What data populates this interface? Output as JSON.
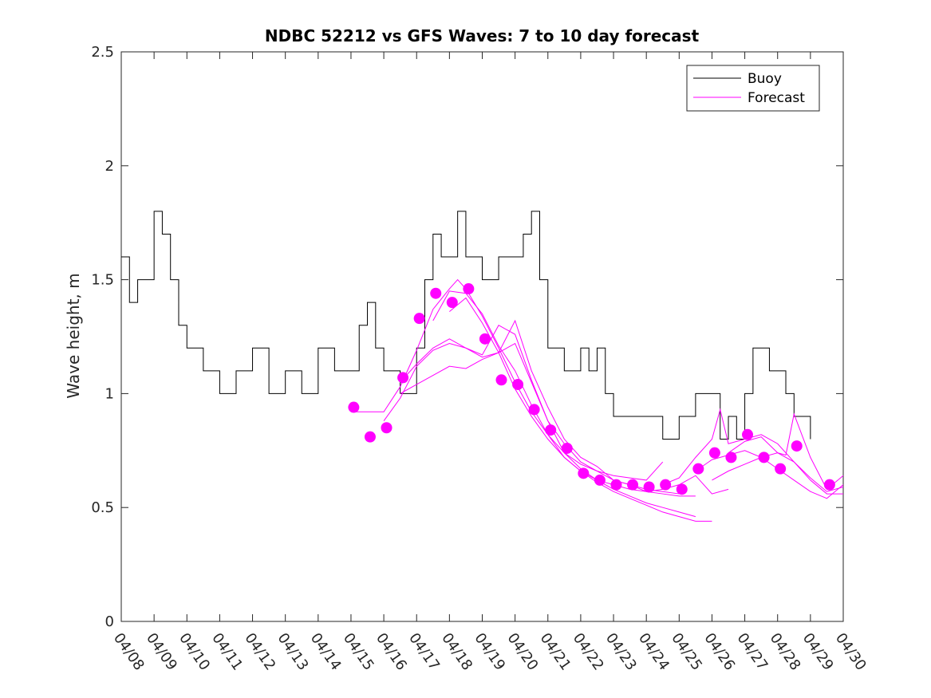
{
  "chart_data": {
    "type": "line",
    "title": "NDBC 52212 vs GFS Waves: 7 to 10 day forecast",
    "xlabel": "",
    "ylabel": "Wave height, m",
    "ylim": [
      0,
      2.5
    ],
    "yticks": [
      0,
      0.5,
      1,
      1.5,
      2,
      2.5
    ],
    "ytick_labels": [
      "0",
      "0.5",
      "1",
      "1.5",
      "2",
      "2.5"
    ],
    "xlim": [
      "04/08",
      "04/30"
    ],
    "xtick_labels": [
      "04/08",
      "04/09",
      "04/10",
      "04/11",
      "04/12",
      "04/13",
      "04/14",
      "04/15",
      "04/16",
      "04/17",
      "04/18",
      "04/19",
      "04/20",
      "04/21",
      "04/22",
      "04/23",
      "04/24",
      "04/25",
      "04/26",
      "04/27",
      "04/28",
      "04/29",
      "04/30"
    ],
    "legend": {
      "position": "top-right",
      "entries": [
        "Buoy",
        "Forecast"
      ]
    },
    "colors": {
      "buoy": "#000000",
      "forecast": "#ff00ff"
    },
    "series": [
      {
        "name": "Buoy",
        "x": [
          "04/08 00:00",
          "04/08 06:00",
          "04/08 12:00",
          "04/08 18:00",
          "04/09 00:00",
          "04/09 06:00",
          "04/09 12:00",
          "04/09 18:00",
          "04/10 00:00",
          "04/10 12:00",
          "04/11 00:00",
          "04/11 12:00",
          "04/12 00:00",
          "04/12 12:00",
          "04/13 00:00",
          "04/13 12:00",
          "04/14 00:00",
          "04/14 12:00",
          "04/15 00:00",
          "04/15 06:00",
          "04/15 12:00",
          "04/15 18:00",
          "04/16 00:00",
          "04/16 12:00",
          "04/17 00:00",
          "04/17 06:00",
          "04/17 12:00",
          "04/17 18:00",
          "04/18 00:00",
          "04/18 06:00",
          "04/18 12:00",
          "04/18 18:00",
          "04/19 00:00",
          "04/19 12:00",
          "04/20 00:00",
          "04/20 06:00",
          "04/20 12:00",
          "04/20 18:00",
          "04/21 00:00",
          "04/21 12:00",
          "04/22 00:00",
          "04/22 06:00",
          "04/22 12:00",
          "04/22 18:00",
          "04/23 00:00",
          "04/23 12:00",
          "04/24 00:00",
          "04/24 12:00",
          "04/25 00:00",
          "04/25 12:00",
          "04/26 00:00",
          "04/26 06:00",
          "04/26 12:00",
          "04/26 18:00",
          "04/27 00:00",
          "04/27 06:00",
          "04/27 12:00",
          "04/27 18:00",
          "04/28 00:00",
          "04/28 06:00",
          "04/28 12:00",
          "04/28 18:00",
          "04/29 00:00"
        ],
        "values": [
          1.6,
          1.4,
          1.5,
          1.5,
          1.8,
          1.7,
          1.5,
          1.3,
          1.2,
          1.1,
          1.0,
          1.1,
          1.2,
          1.0,
          1.1,
          1.0,
          1.2,
          1.1,
          1.1,
          1.3,
          1.4,
          1.2,
          1.1,
          1.0,
          1.2,
          1.5,
          1.7,
          1.6,
          1.6,
          1.8,
          1.6,
          1.6,
          1.5,
          1.6,
          1.6,
          1.7,
          1.8,
          1.5,
          1.2,
          1.1,
          1.2,
          1.1,
          1.2,
          1.0,
          0.9,
          0.9,
          0.9,
          0.8,
          0.9,
          1.0,
          1.0,
          0.8,
          0.9,
          0.8,
          1.0,
          1.2,
          1.2,
          1.1,
          1.1,
          1.0,
          0.9,
          0.9,
          0.8
        ]
      },
      {
        "name": "Forecast",
        "runs": [
          {
            "x": [
              "04/15 00:00",
              "04/15 12:00",
              "04/16 00:00",
              "04/16 12:00",
              "04/17 00:00",
              "04/17 12:00",
              "04/18 00:00",
              "04/18 06:00",
              "04/18 12:00",
              "04/19 00:00",
              "04/19 12:00",
              "04/20 00:00",
              "04/20 12:00",
              "04/21 00:00",
              "04/21 12:00",
              "04/22 00:00",
              "04/22 12:00",
              "04/23 00:00",
              "04/23 12:00",
              "04/24 00:00",
              "04/24 12:00"
            ],
            "values": [
              0.92,
              0.92,
              0.92,
              1.03,
              1.19,
              1.37,
              1.46,
              1.5,
              1.46,
              1.34,
              1.2,
              1.05,
              0.92,
              0.82,
              0.74,
              0.69,
              0.66,
              0.64,
              0.63,
              0.62,
              0.7
            ]
          },
          {
            "x": [
              "04/16 00:00",
              "04/16 12:00",
              "04/17 00:00",
              "04/17 12:00",
              "04/18 00:00",
              "04/18 12:00",
              "04/19 00:00",
              "04/19 12:00",
              "04/20 00:00",
              "04/20 12:00",
              "04/21 00:00",
              "04/21 12:00",
              "04/22 00:00",
              "04/22 12:00",
              "04/23 00:00",
              "04/23 12:00",
              "04/24 00:00",
              "04/24 12:00",
              "04/25 00:00"
            ],
            "values": [
              0.88,
              0.98,
              1.12,
              1.19,
              1.22,
              1.2,
              1.17,
              1.3,
              1.26,
              1.06,
              0.88,
              0.78,
              0.7,
              0.66,
              0.62,
              0.6,
              0.58,
              0.57,
              0.56
            ]
          },
          {
            "x": [
              "04/16 12:00",
              "04/17 00:00",
              "04/17 12:00",
              "04/18 00:00",
              "04/18 12:00",
              "04/19 00:00",
              "04/19 12:00",
              "04/20 00:00",
              "04/20 12:00",
              "04/21 00:00",
              "04/21 12:00",
              "04/22 00:00",
              "04/22 12:00",
              "04/23 00:00",
              "04/23 12:00",
              "04/24 00:00",
              "04/24 12:00",
              "04/25 00:00",
              "04/25 12:00"
            ],
            "values": [
              1.05,
              1.13,
              1.2,
              1.24,
              1.2,
              1.16,
              1.18,
              1.32,
              1.1,
              0.94,
              0.8,
              0.72,
              0.68,
              0.62,
              0.6,
              0.57,
              0.56,
              0.55,
              0.55
            ]
          },
          {
            "x": [
              "04/16 12:00",
              "04/17 00:00",
              "04/17 12:00",
              "04/18 00:00",
              "04/18 12:00",
              "04/19 00:00",
              "04/19 12:00",
              "04/20 00:00",
              "04/20 12:00",
              "04/21 00:00",
              "04/21 12:00",
              "04/22 00:00",
              "04/22 12:00",
              "04/23 00:00",
              "04/23 12:00",
              "04/24 00:00",
              "04/24 12:00",
              "04/25 00:00",
              "04/25 12:00"
            ],
            "values": [
              1.0,
              1.04,
              1.08,
              1.12,
              1.11,
              1.15,
              1.18,
              1.22,
              1.05,
              0.88,
              0.74,
              0.67,
              0.62,
              0.58,
              0.55,
              0.52,
              0.5,
              0.48,
              0.46
            ]
          },
          {
            "x": [
              "04/17 12:00",
              "04/18 00:00",
              "04/18 12:00",
              "04/19 00:00",
              "04/19 12:00",
              "04/20 00:00",
              "04/20 12:00",
              "04/21 00:00",
              "04/21 12:00",
              "04/22 00:00",
              "04/22 12:00",
              "04/23 00:00",
              "04/23 12:00",
              "04/24 00:00",
              "04/24 12:00",
              "04/25 00:00",
              "04/25 12:00",
              "04/26 00:00"
            ],
            "values": [
              1.32,
              1.45,
              1.44,
              1.35,
              1.21,
              1.1,
              0.95,
              0.82,
              0.72,
              0.66,
              0.61,
              0.57,
              0.54,
              0.51,
              0.48,
              0.46,
              0.44,
              0.44
            ]
          },
          {
            "x": [
              "04/18 00:00",
              "04/18 12:00",
              "04/19 00:00",
              "04/19 12:00",
              "04/20 00:00",
              "04/20 12:00",
              "04/21 00:00",
              "04/21 12:00",
              "04/22 00:00",
              "04/22 12:00",
              "04/23 00:00",
              "04/23 12:00",
              "04/24 00:00",
              "04/24 12:00",
              "04/25 00:00",
              "04/25 12:00",
              "04/26 00:00",
              "04/26 12:00"
            ],
            "values": [
              1.36,
              1.42,
              1.31,
              1.18,
              1.02,
              0.9,
              0.8,
              0.72,
              0.66,
              0.62,
              0.6,
              0.58,
              0.57,
              0.58,
              0.6,
              0.64,
              0.56,
              0.58
            ]
          },
          {
            "x": [
              "04/24 12:00",
              "04/25 00:00",
              "04/25 12:00",
              "04/26 00:00",
              "04/26 06:00",
              "04/26 12:00",
              "04/27 00:00",
              "04/27 12:00",
              "04/28 00:00",
              "04/28 12:00",
              "04/29 00:00",
              "04/29 12:00",
              "04/30 00:00"
            ],
            "values": [
              0.6,
              0.63,
              0.72,
              0.8,
              0.93,
              0.78,
              0.8,
              0.82,
              0.78,
              0.7,
              0.63,
              0.57,
              0.59
            ]
          },
          {
            "x": [
              "04/25 12:00",
              "04/26 00:00",
              "04/26 12:00",
              "04/27 00:00",
              "04/27 12:00",
              "04/28 00:00",
              "04/28 12:00",
              "04/29 00:00",
              "04/29 12:00",
              "04/30 00:00"
            ],
            "values": [
              0.66,
              0.71,
              0.73,
              0.75,
              0.72,
              0.74,
              0.7,
              0.62,
              0.56,
              0.56
            ]
          },
          {
            "x": [
              "04/26 00:00",
              "04/26 12:00",
              "04/27 00:00",
              "04/27 12:00",
              "04/28 00:00",
              "04/28 12:00",
              "04/29 00:00",
              "04/29 12:00",
              "04/30 00:00"
            ],
            "values": [
              0.62,
              0.66,
              0.69,
              0.72,
              0.67,
              0.62,
              0.57,
              0.54,
              0.6
            ]
          },
          {
            "x": [
              "04/26 12:00",
              "04/27 00:00",
              "04/27 12:00",
              "04/28 00:00",
              "04/28 06:00",
              "04/28 12:00",
              "04/29 00:00",
              "04/29 12:00",
              "04/30 00:00"
            ],
            "values": [
              0.74,
              0.79,
              0.81,
              0.74,
              0.73,
              0.91,
              0.72,
              0.58,
              0.64
            ]
          }
        ],
        "markers": {
          "x": [
            "04/15 02:00",
            "04/15 14:00",
            "04/16 02:00",
            "04/16 14:00",
            "04/17 02:00",
            "04/17 14:00",
            "04/18 02:00",
            "04/18 14:00",
            "04/19 02:00",
            "04/19 14:00",
            "04/20 02:00",
            "04/20 14:00",
            "04/21 02:00",
            "04/21 14:00",
            "04/22 02:00",
            "04/22 14:00",
            "04/23 02:00",
            "04/23 14:00",
            "04/24 02:00",
            "04/24 14:00",
            "04/25 02:00",
            "04/25 14:00",
            "04/26 02:00",
            "04/26 14:00",
            "04/27 02:00",
            "04/27 14:00",
            "04/28 02:00",
            "04/28 14:00",
            "04/29 14:00"
          ],
          "values": [
            0.94,
            0.81,
            0.85,
            1.07,
            1.33,
            1.44,
            1.4,
            1.46,
            1.24,
            1.06,
            1.04,
            0.93,
            0.84,
            0.76,
            0.65,
            0.62,
            0.6,
            0.6,
            0.59,
            0.6,
            0.58,
            0.67,
            0.74,
            0.72,
            0.82,
            0.72,
            0.67,
            0.77,
            0.6
          ]
        }
      }
    ]
  }
}
